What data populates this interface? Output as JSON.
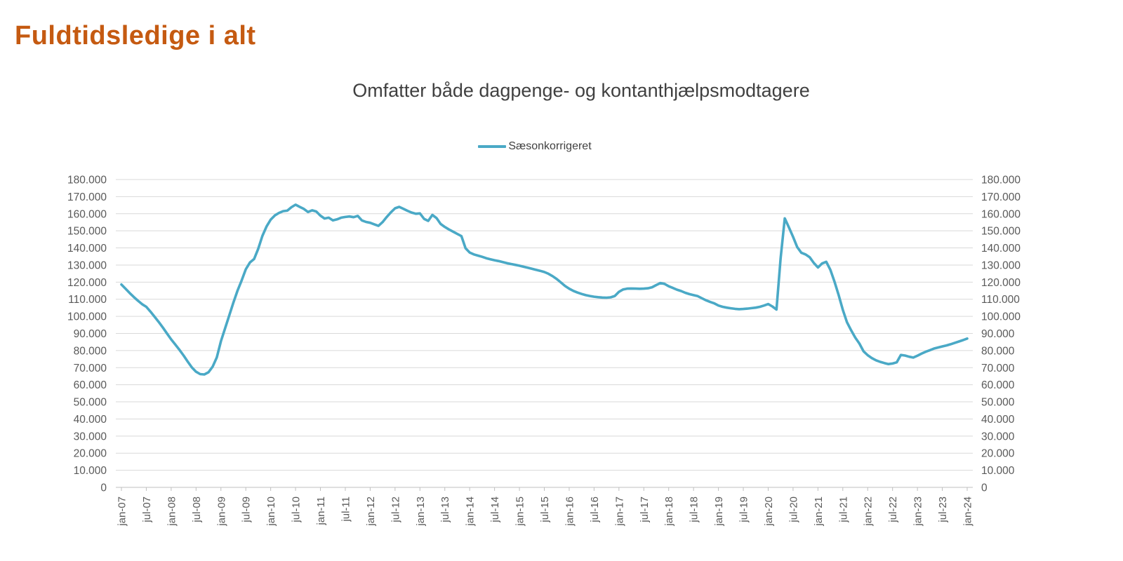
{
  "page": {
    "title": "Fuldtidsledige i alt",
    "title_color": "#C55A11"
  },
  "colors": {
    "gridline": "#D9D9D9",
    "axis_line": "#BFBFBF",
    "axis_label": "#595959",
    "subtitle": "#404040",
    "series": "#4AA9C6"
  },
  "chart_data": {
    "type": "line",
    "title": "Omfatter både dagpenge- og kontanthjælpsmodtagere",
    "legend": [
      {
        "name": "Sæsonkorrigeret",
        "color": "#4AA9C6"
      }
    ],
    "legend_position": "top-center",
    "grid": "horizontal",
    "ylim": [
      0,
      180000
    ],
    "y_gridline_step": 10000,
    "y_tick_labels": [
      "0",
      "10.000",
      "20.000",
      "30.000",
      "40.000",
      "50.000",
      "60.000",
      "70.000",
      "80.000",
      "90.000",
      "100.000",
      "110.000",
      "120.000",
      "130.000",
      "140.000",
      "150.000",
      "160.000",
      "170.000",
      "180.000"
    ],
    "y_axis_sides": [
      "left",
      "right"
    ],
    "x_unit": "month",
    "x_start": "jan-07",
    "x_end": "jan-24",
    "x_tick_labels": [
      "jan-07",
      "jul-07",
      "jan-08",
      "jul-08",
      "jan-09",
      "jul-09",
      "jan-10",
      "jul-10",
      "jan-11",
      "jul-11",
      "jan-12",
      "jul-12",
      "jan-13",
      "jul-13",
      "jan-14",
      "jul-14",
      "jan-15",
      "jul-15",
      "jan-16",
      "jul-16",
      "jan-17",
      "jul-17",
      "jan-18",
      "jul-18",
      "jan-19",
      "jul-19",
      "jan-20",
      "jul-20",
      "jan-21",
      "jul-21",
      "jan-22",
      "jul-22",
      "jan-23",
      "jul-23",
      "jan-24"
    ],
    "series": [
      {
        "name": "Sæsonkorrigeret",
        "color": "#4AA9C6",
        "values": [
          118600,
          116100,
          113600,
          111300,
          109100,
          107100,
          105600,
          102800,
          99700,
          96700,
          93400,
          89900,
          86500,
          83500,
          80400,
          77100,
          73500,
          70100,
          67600,
          66200,
          66000,
          67300,
          70600,
          76000,
          85500,
          93000,
          100500,
          108000,
          115000,
          121000,
          127500,
          131500,
          133500,
          139500,
          147000,
          152500,
          156500,
          159000,
          160500,
          161500,
          161800,
          163800,
          165300,
          164000,
          162800,
          161000,
          162000,
          161300,
          158900,
          157200,
          157700,
          156100,
          156700,
          157700,
          158100,
          158400,
          158000,
          158700,
          156100,
          155200,
          154700,
          153800,
          152900,
          155100,
          158100,
          160800,
          163200,
          164000,
          162900,
          161700,
          160700,
          160000,
          160200,
          157000,
          155800,
          159300,
          157500,
          154000,
          152300,
          150800,
          149500,
          148200,
          146900,
          139800,
          137300,
          136200,
          135500,
          134800,
          134000,
          133400,
          132800,
          132300,
          131700,
          131100,
          130600,
          130100,
          129600,
          129000,
          128400,
          127800,
          127200,
          126600,
          125900,
          124900,
          123500,
          121800,
          119800,
          117800,
          116200,
          114900,
          113900,
          113100,
          112400,
          111900,
          111500,
          111200,
          111000,
          110900,
          111100,
          111900,
          114300,
          115700,
          116200,
          116300,
          116200,
          116100,
          116200,
          116400,
          117000,
          118300,
          119500,
          119000,
          117600,
          116600,
          115600,
          114800,
          113800,
          113000,
          112400,
          111800,
          110600,
          109400,
          108400,
          107600,
          106300,
          105600,
          105100,
          104700,
          104400,
          104200,
          104300,
          104500,
          104800,
          105100,
          105600,
          106300,
          107200,
          105800,
          104000,
          134000,
          157300,
          152000,
          146500,
          140500,
          137200,
          136200,
          134600,
          131200,
          128600,
          130900,
          131900,
          127200,
          120200,
          112400,
          103800,
          96600,
          91900,
          87600,
          84100,
          79600,
          77300,
          75600,
          74300,
          73400,
          72700,
          72100,
          72400,
          73100,
          77400,
          77100,
          76400,
          75900,
          77000,
          78200,
          79300,
          80200,
          81200,
          81800,
          82400,
          83000,
          83700,
          84500,
          85300,
          86100,
          87000
        ]
      }
    ]
  }
}
